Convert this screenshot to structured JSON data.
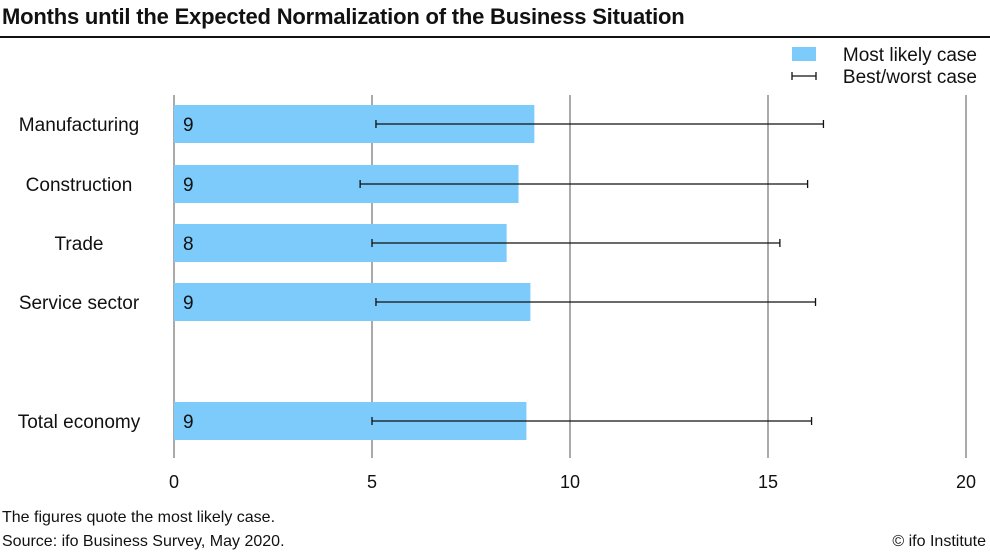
{
  "chart_data": {
    "type": "bar",
    "orientation": "horizontal",
    "title": "Months until the Expected Normalization of the Business Situation",
    "categories": [
      "Manufacturing",
      "Construction",
      "Trade",
      "Service sector",
      "Total economy"
    ],
    "series": [
      {
        "name": "Most likely case",
        "values": [
          9.1,
          8.7,
          8.4,
          9.0,
          8.9
        ],
        "labels": [
          "9",
          "9",
          "8",
          "9",
          "9"
        ]
      }
    ],
    "error_bars": {
      "name": "Best/worst case",
      "low": [
        5.1,
        4.7,
        5.0,
        5.1,
        5.0
      ],
      "high": [
        16.4,
        16.0,
        15.3,
        16.2,
        16.1
      ]
    },
    "x_ticks": [
      0,
      5,
      10,
      15,
      20
    ],
    "x_tick_labels": [
      "0",
      "5",
      "10",
      "15",
      "20"
    ],
    "xlim": [
      0,
      20
    ],
    "grid": "vertical",
    "legend_position": "top-right",
    "bar_color": "#7dcbfb",
    "error_bar_color": "#111111",
    "grid_color": "#555555"
  },
  "notes": {
    "figures": "The figures quote the most likely case.",
    "source": "Source: ifo Business Survey, May 2020.",
    "copyright": "© ifo Institute"
  }
}
